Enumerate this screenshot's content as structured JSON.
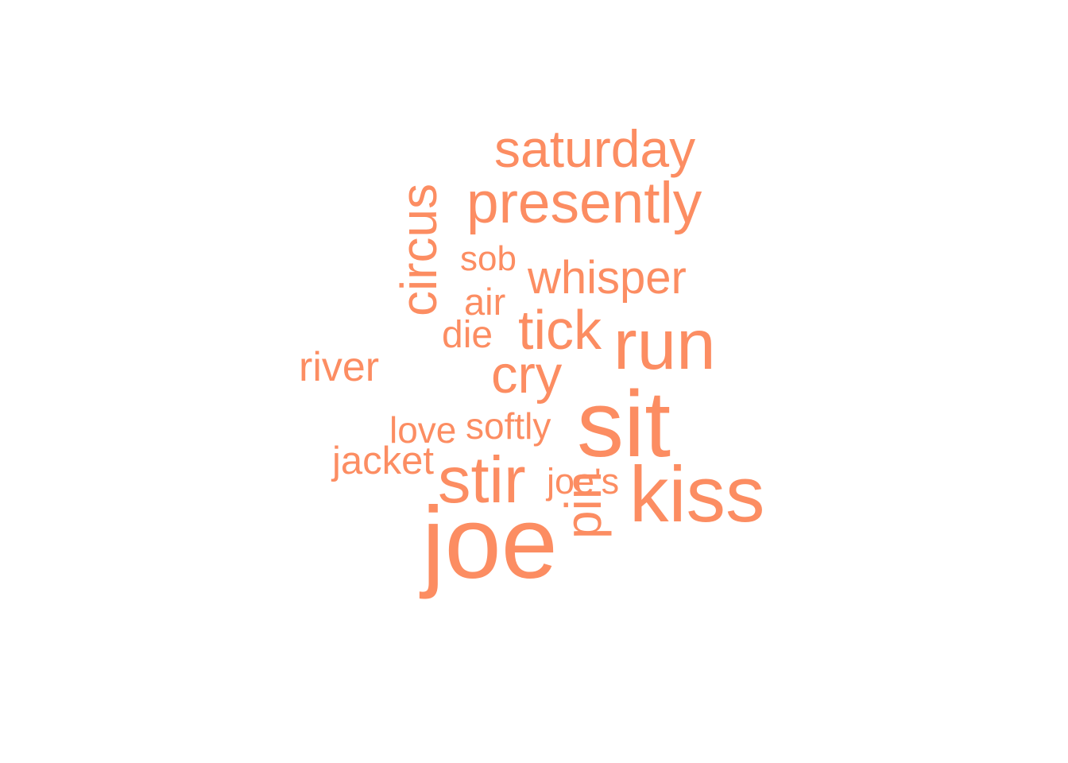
{
  "cloud": {
    "word_color": "#FC8D62",
    "words": [
      {
        "text": "saturday",
        "rotated": false
      },
      {
        "text": "presently",
        "rotated": false
      },
      {
        "text": "sob",
        "rotated": false
      },
      {
        "text": "whisper",
        "rotated": false
      },
      {
        "text": "circus",
        "rotated": true
      },
      {
        "text": "air",
        "rotated": false
      },
      {
        "text": "die",
        "rotated": false
      },
      {
        "text": "tick",
        "rotated": false
      },
      {
        "text": "run",
        "rotated": false
      },
      {
        "text": "river",
        "rotated": false
      },
      {
        "text": "cry",
        "rotated": false
      },
      {
        "text": "sit",
        "rotated": false
      },
      {
        "text": "love",
        "rotated": false
      },
      {
        "text": "softly",
        "rotated": false
      },
      {
        "text": "jacket",
        "rotated": false
      },
      {
        "text": "stir",
        "rotated": false
      },
      {
        "text": "joe's",
        "rotated": false
      },
      {
        "text": "kiss",
        "rotated": false
      },
      {
        "text": "pin",
        "rotated": true
      },
      {
        "text": "joe",
        "rotated": false
      }
    ]
  }
}
